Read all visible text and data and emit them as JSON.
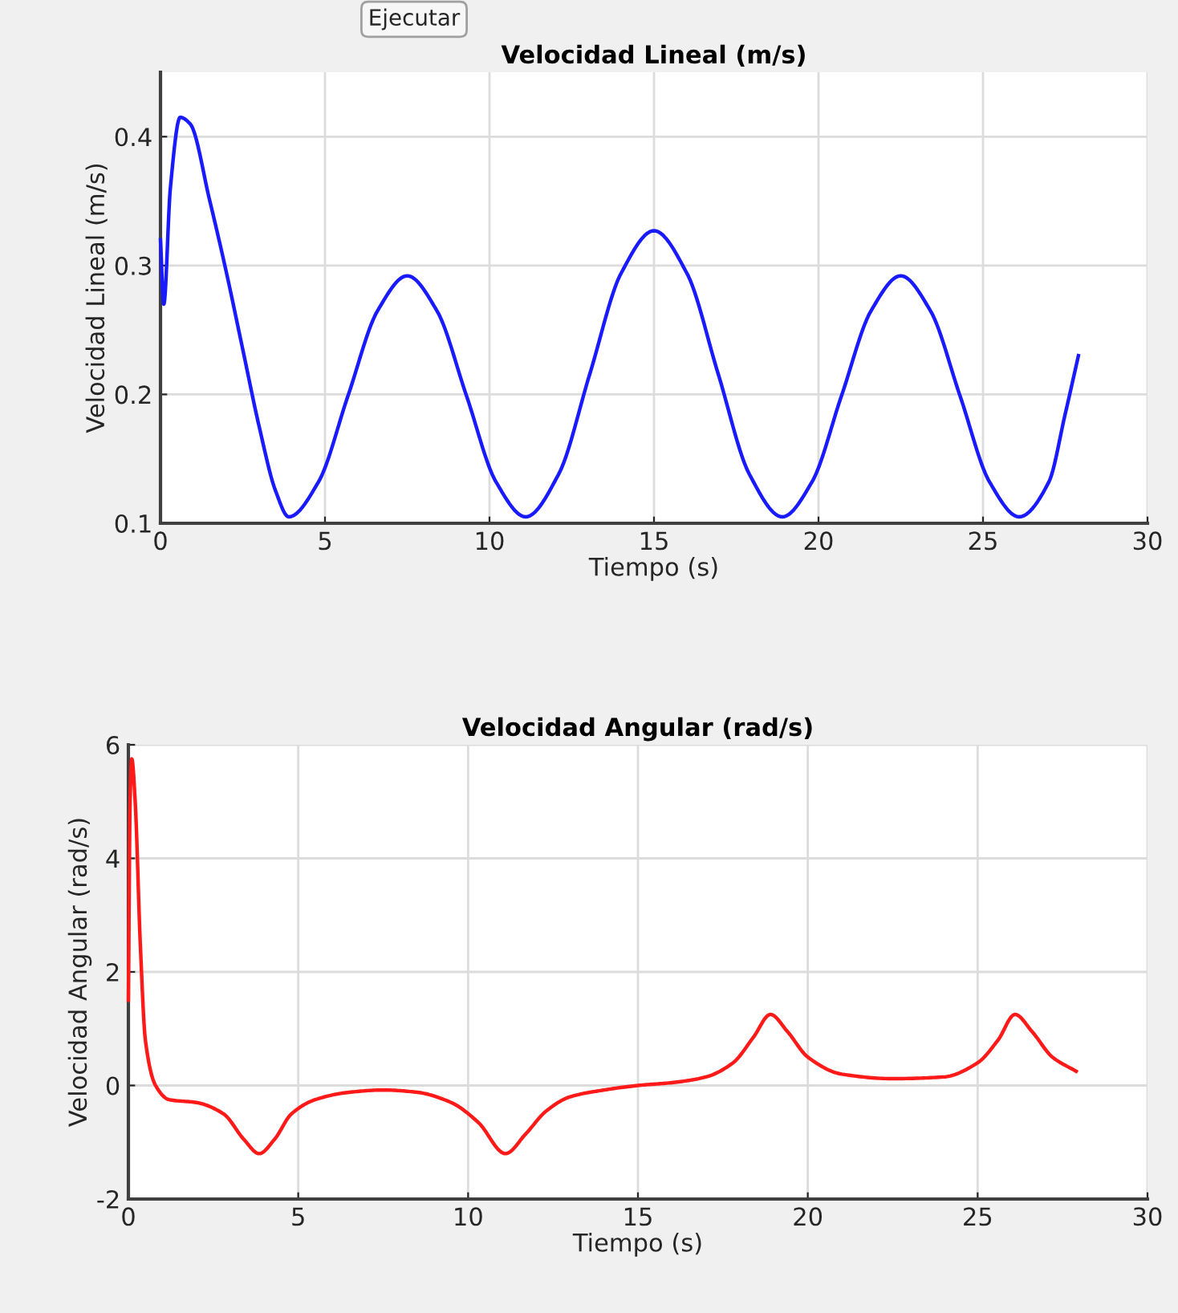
{
  "chart_data": [
    {
      "type": "line",
      "title": "Velocidad Lineal (m/s)",
      "xlabel": "Tiempo (s)",
      "ylabel": "Velocidad Lineal (m/s)",
      "annotations": [
        "Ejecutar"
      ],
      "x": [
        0,
        0.1,
        0.3,
        0.6,
        0.9,
        1.5,
        2.0,
        2.5,
        3.0,
        3.5,
        3.9,
        4.8,
        5.7,
        6.6,
        7.5,
        8.4,
        9.3,
        10.2,
        11.1,
        12.1,
        13.05,
        14.0,
        15.0,
        16.0,
        16.95,
        17.9,
        18.9,
        19.8,
        20.7,
        21.6,
        22.5,
        23.4,
        24.3,
        25.2,
        26.1,
        27.0,
        27.5,
        27.9
      ],
      "series": [
        {
          "color": "#1a1aff",
          "values": [
            0.32,
            0.27,
            0.36,
            0.415,
            0.41,
            0.35,
            0.295,
            0.235,
            0.175,
            0.125,
            0.105,
            0.132,
            0.199,
            0.265,
            0.292,
            0.265,
            0.199,
            0.132,
            0.105,
            0.138,
            0.216,
            0.294,
            0.327,
            0.294,
            0.216,
            0.138,
            0.105,
            0.132,
            0.199,
            0.265,
            0.292,
            0.265,
            0.199,
            0.132,
            0.105,
            0.132,
            0.185,
            0.23
          ]
        }
      ],
      "xlim": [
        0,
        30
      ],
      "xticks": [
        0,
        5,
        10,
        15,
        20,
        25,
        30
      ],
      "ylim": [
        0.1,
        0.45
      ],
      "yticks": [
        0.1,
        0.2,
        0.3,
        0.4
      ],
      "grid": true,
      "legend": false
    },
    {
      "type": "line",
      "title": "Velocidad Angular (rad/s)",
      "xlabel": "Tiempo (s)",
      "ylabel": "Velocidad Angular (rad/s)",
      "x": [
        0,
        0.05,
        0.1,
        0.2,
        0.35,
        0.5,
        0.8,
        1.2,
        2.0,
        2.8,
        3.4,
        3.85,
        4.3,
        4.8,
        5.5,
        6.5,
        7.5,
        8.5,
        9.5,
        10.3,
        11.1,
        11.7,
        12.3,
        13.0,
        14.0,
        15.0,
        16.0,
        17.0,
        17.8,
        18.4,
        18.9,
        19.4,
        20.0,
        21.0,
        22.5,
        24.0,
        25.0,
        25.6,
        26.1,
        26.6,
        27.2,
        27.9
      ],
      "series": [
        {
          "color": "#ff1a1a",
          "values": [
            1.5,
            5.0,
            5.75,
            5.0,
            2.5,
            0.8,
            0.0,
            -0.25,
            -0.3,
            -0.5,
            -0.95,
            -1.2,
            -0.95,
            -0.5,
            -0.25,
            -0.12,
            -0.08,
            -0.12,
            -0.3,
            -0.65,
            -1.2,
            -0.85,
            -0.45,
            -0.2,
            -0.08,
            0.0,
            0.05,
            0.15,
            0.4,
            0.85,
            1.25,
            0.95,
            0.5,
            0.2,
            0.12,
            0.15,
            0.4,
            0.8,
            1.25,
            0.95,
            0.5,
            0.25
          ]
        }
      ],
      "xlim": [
        0,
        30
      ],
      "xticks": [
        0,
        5,
        10,
        15,
        20,
        25,
        30
      ],
      "ylim": [
        -2,
        6
      ],
      "yticks": [
        -2,
        0,
        2,
        4,
        6
      ],
      "grid": true,
      "legend": false
    }
  ]
}
